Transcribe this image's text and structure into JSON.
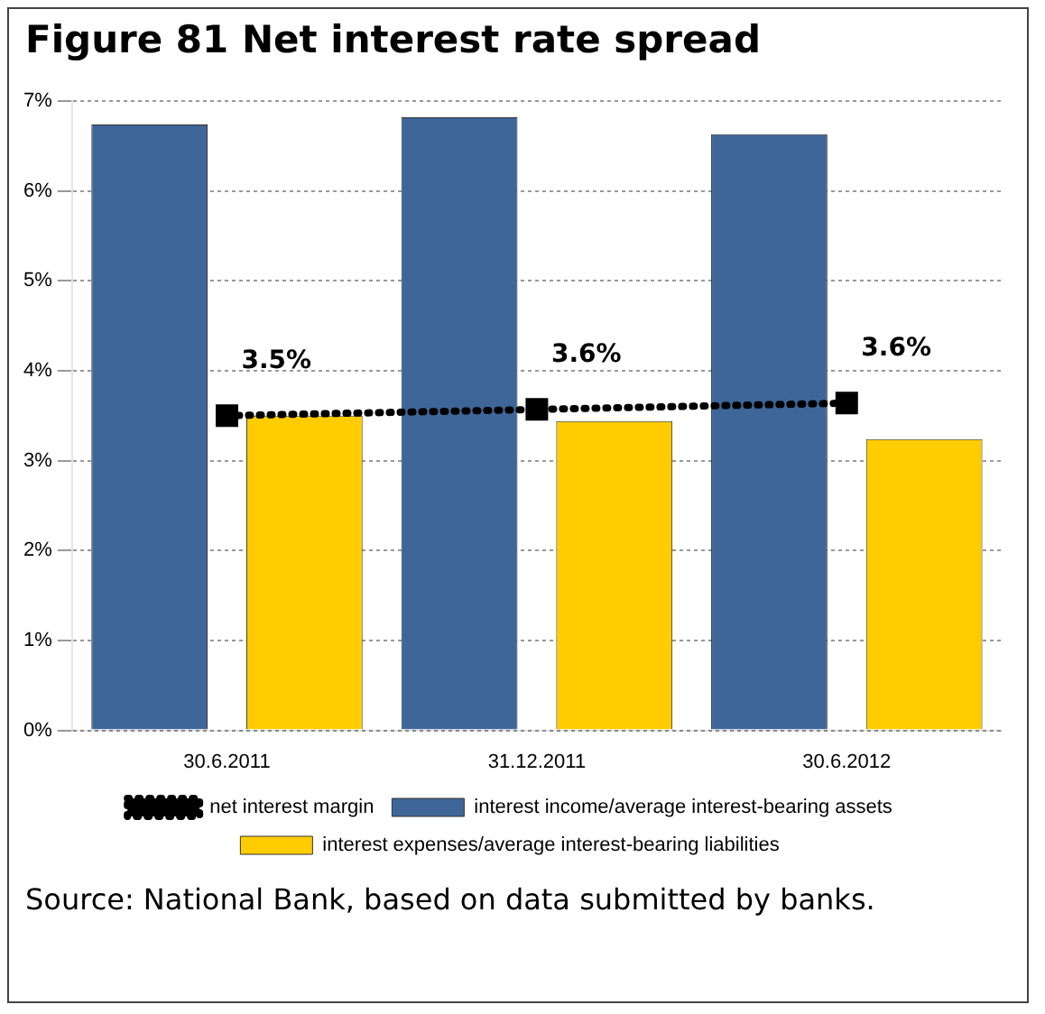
{
  "chart_data": {
    "type": "bar",
    "title": "Figure 81 Net interest rate spread",
    "categories": [
      "30.6.2011",
      "31.12.2011",
      "30.6.2012"
    ],
    "series": [
      {
        "name": "interest income/average interest-bearing assets",
        "color": "#3e6699",
        "values": [
          6.74,
          6.82,
          6.63
        ]
      },
      {
        "name": "interest expenses/average interest-bearing liabilities",
        "color": "#ffcc00",
        "values": [
          3.5,
          3.44,
          3.24
        ]
      },
      {
        "name": "net interest margin",
        "type": "line",
        "color": "#000000",
        "values": [
          3.5,
          3.57,
          3.64
        ],
        "value_labels": [
          "3.5%",
          "3.6%",
          "3.6%"
        ],
        "marker": "square",
        "line_style": "dotted"
      }
    ],
    "ylim": [
      0,
      7
    ],
    "yticks": [
      {
        "value": 0,
        "label": "0%"
      },
      {
        "value": 1,
        "label": "1%"
      },
      {
        "value": 2,
        "label": "2%"
      },
      {
        "value": 3,
        "label": "3%"
      },
      {
        "value": 4,
        "label": "4%"
      },
      {
        "value": 5,
        "label": "5%"
      },
      {
        "value": 6,
        "label": "6%"
      },
      {
        "value": 7,
        "label": "7%"
      }
    ],
    "grid": "y",
    "legend": "bottom",
    "annotations": [
      "Source: National Bank, based on data submitted by banks."
    ]
  }
}
